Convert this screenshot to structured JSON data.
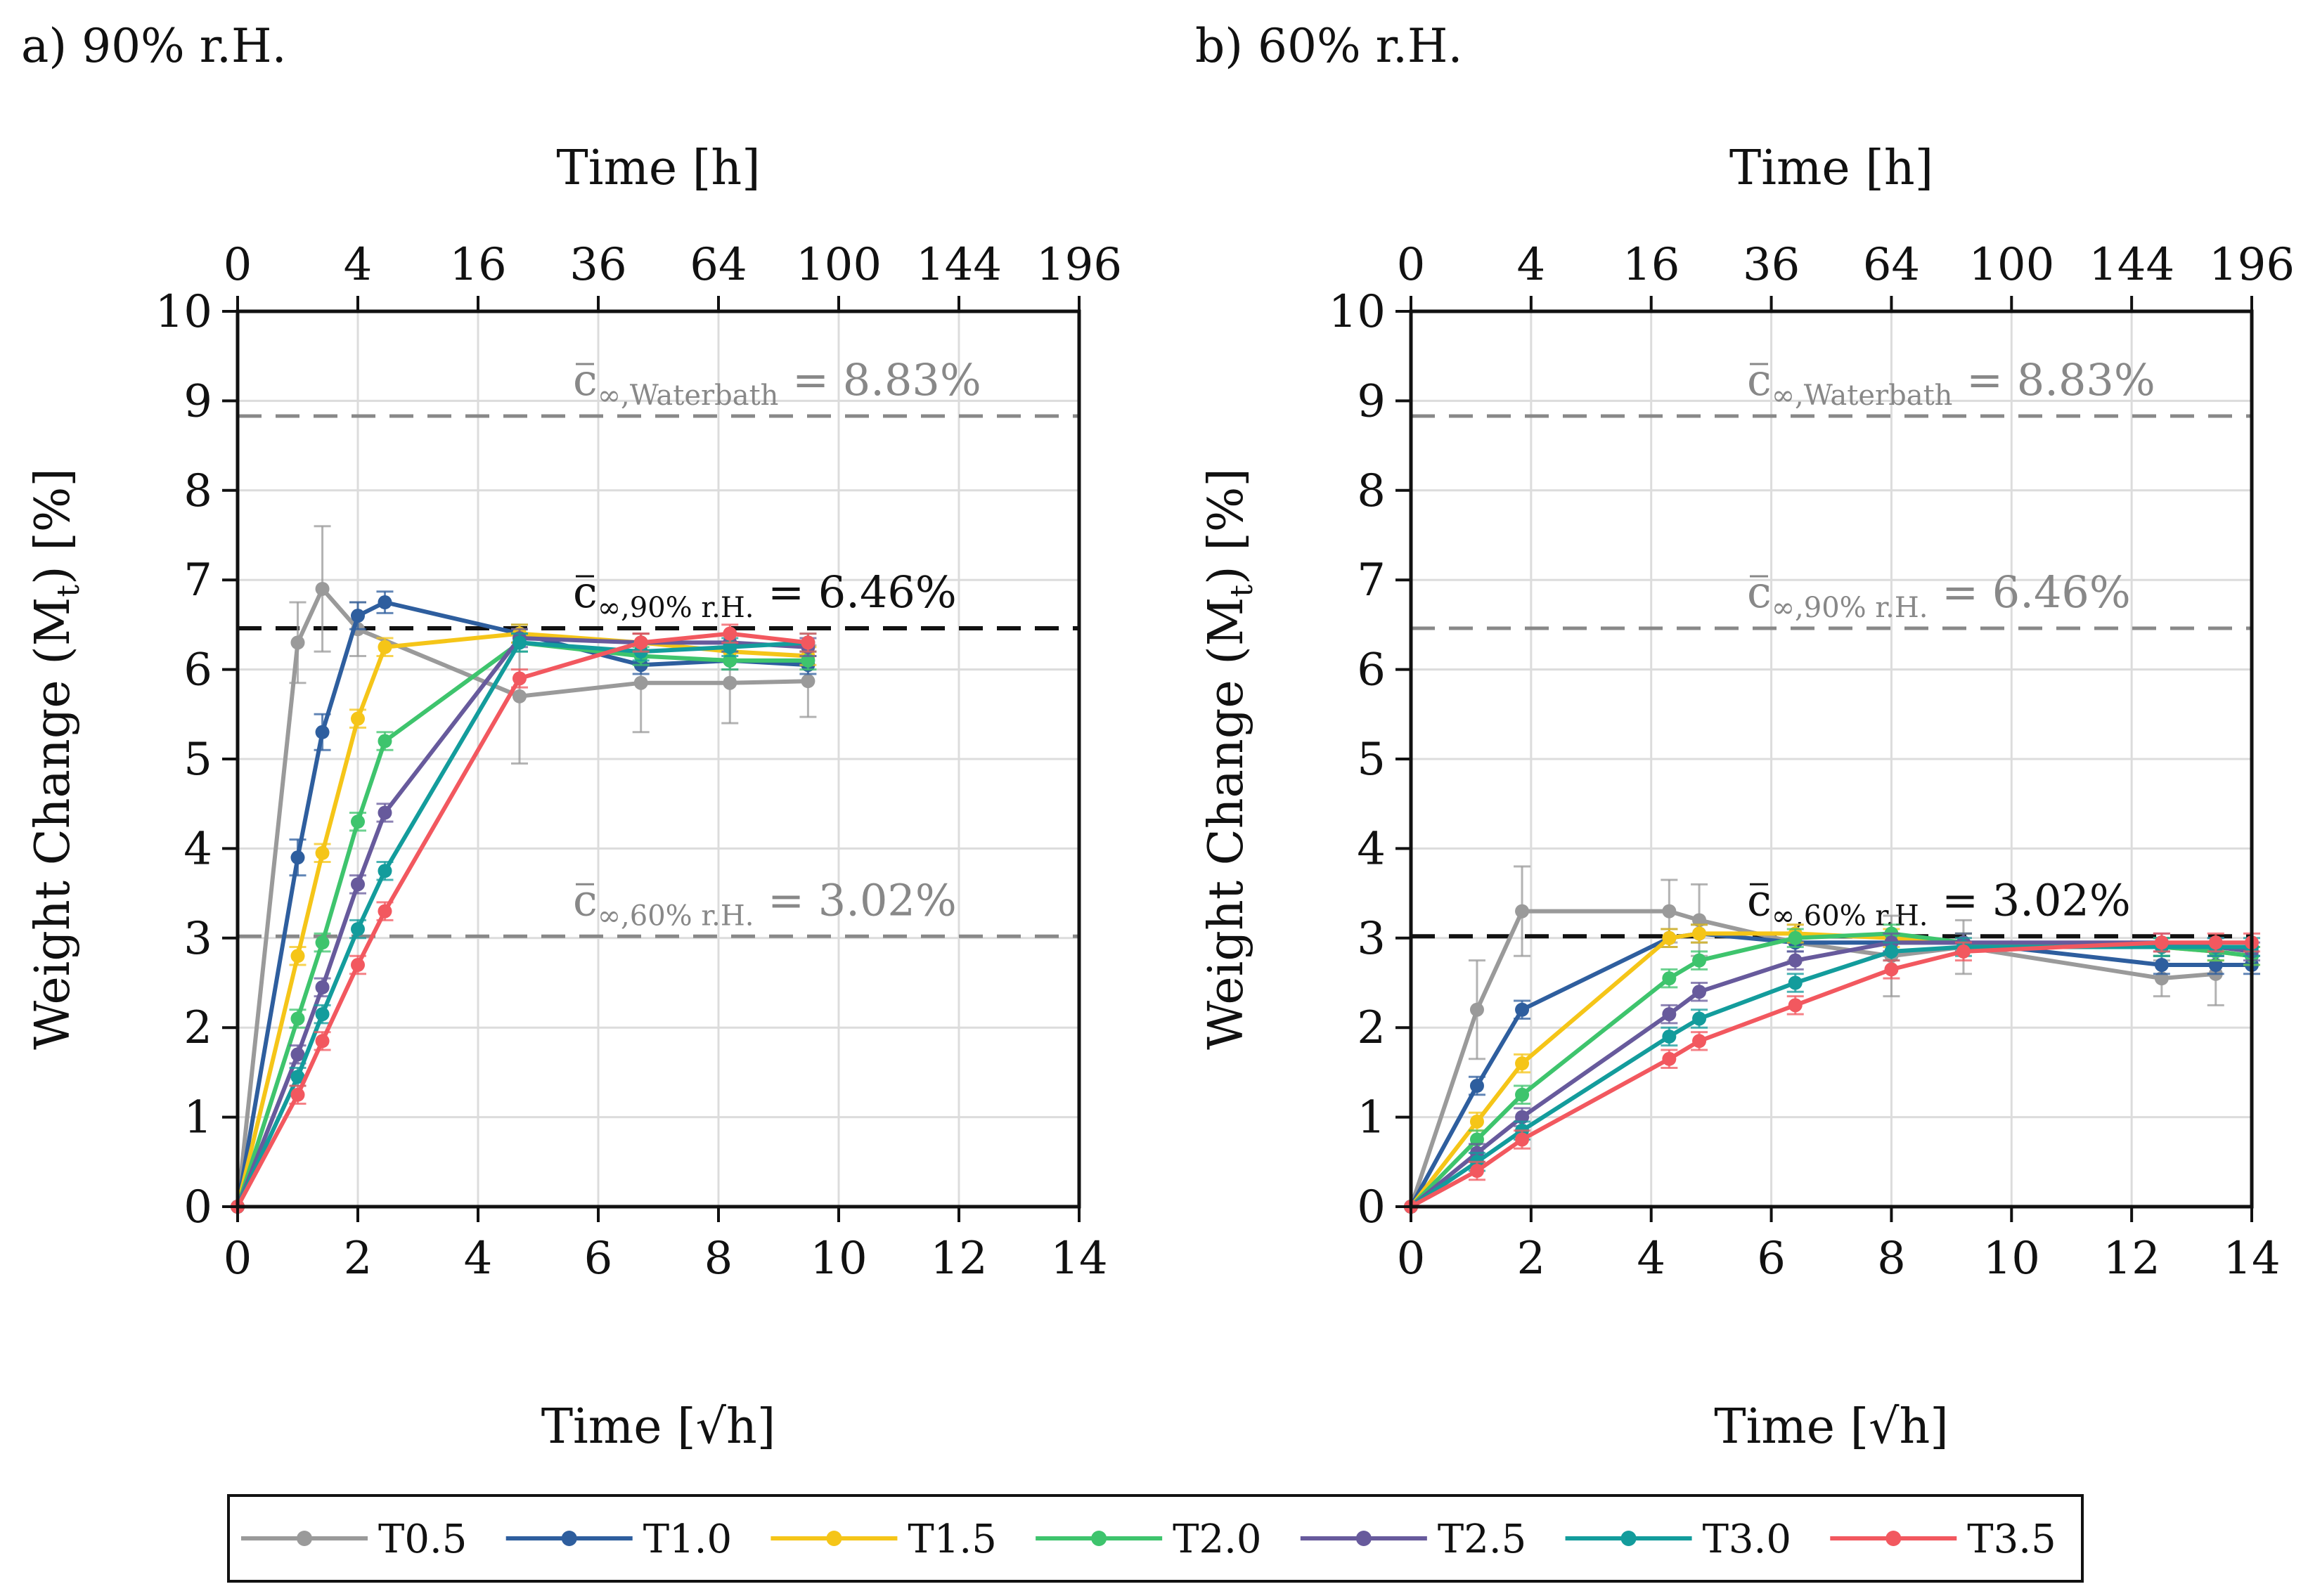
{
  "chart_data": [
    {
      "type": "line",
      "panel_label": "a) 90% r.H.",
      "title": "90% r.H.",
      "xlabel": "Time [√h]",
      "x2label": "Time [h]",
      "ylabel": "Weight Change (Mt) [%]",
      "ylabel_main": "Weight Change (M",
      "ylabel_sub": "t",
      "ylabel_end": ") [%]",
      "xlim": [
        0,
        14
      ],
      "ylim": [
        0,
        10
      ],
      "x_ticks": [
        "0",
        "2",
        "4",
        "6",
        "8",
        "10",
        "12",
        "14"
      ],
      "y_ticks": [
        "0",
        "1",
        "2",
        "3",
        "4",
        "5",
        "6",
        "7",
        "8",
        "9",
        "10"
      ],
      "top_ticks": [
        "0",
        "4",
        "16",
        "36",
        "64",
        "100",
        "144",
        "196"
      ],
      "grid": true,
      "reference_lines": [
        {
          "value": 8.83,
          "main": "c",
          "sub": "∞,Waterbath",
          "value_text": " = 8.83%",
          "emphasis": false
        },
        {
          "value": 6.46,
          "main": "c",
          "sub": "∞,90% r.H.",
          "value_text": " = 6.46%",
          "emphasis": true
        },
        {
          "value": 3.02,
          "main": "c",
          "sub": "∞,60% r.H.",
          "value_text": " = 3.02%",
          "emphasis": false
        }
      ],
      "series": [
        {
          "name": "T0.5",
          "color": "#9a9a9a",
          "x": [
            0,
            1,
            1.41,
            2,
            4.69,
            6.71,
            8.19,
            9.49
          ],
          "y": [
            0,
            6.3,
            6.9,
            6.45,
            5.7,
            5.85,
            5.85,
            5.87
          ],
          "err": [
            0,
            0.45,
            0.7,
            0.3,
            0.75,
            0.55,
            0.45,
            0.4
          ]
        },
        {
          "name": "T1.0",
          "color": "#2e5e9e",
          "x": [
            0,
            1,
            1.41,
            2,
            2.45,
            4.69,
            6.71,
            8.19,
            9.49
          ],
          "y": [
            0,
            3.9,
            5.3,
            6.6,
            6.75,
            6.4,
            6.05,
            6.1,
            6.05
          ],
          "err": [
            0,
            0.2,
            0.2,
            0.15,
            0.12,
            0.1,
            0.1,
            0.1,
            0.1
          ]
        },
        {
          "name": "T1.5",
          "color": "#f5c518",
          "x": [
            0,
            1,
            1.41,
            2,
            2.45,
            4.69,
            6.71,
            8.19,
            9.49
          ],
          "y": [
            0,
            2.8,
            3.95,
            5.45,
            6.25,
            6.4,
            6.3,
            6.2,
            6.15
          ],
          "err": [
            0,
            0.1,
            0.1,
            0.1,
            0.1,
            0.1,
            0.1,
            0.1,
            0.1
          ]
        },
        {
          "name": "T2.0",
          "color": "#3ec46d",
          "x": [
            0,
            1,
            1.41,
            2,
            2.45,
            4.69,
            6.71,
            8.19,
            9.49
          ],
          "y": [
            0,
            2.1,
            2.95,
            4.3,
            5.2,
            6.3,
            6.15,
            6.1,
            6.1
          ],
          "err": [
            0,
            0.1,
            0.1,
            0.1,
            0.1,
            0.1,
            0.1,
            0.1,
            0.1
          ]
        },
        {
          "name": "T2.5",
          "color": "#675a9c",
          "x": [
            0,
            1,
            1.41,
            2,
            2.45,
            4.69,
            6.71,
            8.19,
            9.49
          ],
          "y": [
            0,
            1.7,
            2.45,
            3.6,
            4.4,
            6.35,
            6.3,
            6.3,
            6.25
          ],
          "err": [
            0,
            0.1,
            0.1,
            0.1,
            0.1,
            0.1,
            0.1,
            0.1,
            0.1
          ]
        },
        {
          "name": "T3.0",
          "color": "#139c9c",
          "x": [
            0,
            1,
            1.41,
            2,
            2.45,
            4.69,
            6.71,
            8.19,
            9.49
          ],
          "y": [
            0,
            1.45,
            2.15,
            3.1,
            3.75,
            6.3,
            6.2,
            6.25,
            6.3
          ],
          "err": [
            0,
            0.1,
            0.1,
            0.1,
            0.1,
            0.1,
            0.1,
            0.1,
            0.1
          ]
        },
        {
          "name": "T3.5",
          "color": "#f2585f",
          "x": [
            0,
            1,
            1.41,
            2,
            2.45,
            4.69,
            6.71,
            8.19,
            9.49
          ],
          "y": [
            0,
            1.25,
            1.85,
            2.7,
            3.3,
            5.9,
            6.3,
            6.4,
            6.3
          ],
          "err": [
            0,
            0.1,
            0.1,
            0.1,
            0.1,
            0.1,
            0.1,
            0.1,
            0.1
          ]
        }
      ]
    },
    {
      "type": "line",
      "panel_label": "b) 60% r.H.",
      "title": "60% r.H.",
      "xlabel": "Time [√h]",
      "x2label": "Time [h]",
      "ylabel": "Weight Change (Mt) [%]",
      "ylabel_main": "Weight Change (M",
      "ylabel_sub": "t",
      "ylabel_end": ") [%]",
      "xlim": [
        0,
        14
      ],
      "ylim": [
        0,
        10
      ],
      "x_ticks": [
        "0",
        "2",
        "4",
        "6",
        "8",
        "10",
        "12",
        "14"
      ],
      "y_ticks": [
        "0",
        "1",
        "2",
        "3",
        "4",
        "5",
        "6",
        "7",
        "8",
        "9",
        "10"
      ],
      "top_ticks": [
        "0",
        "4",
        "16",
        "36",
        "64",
        "100",
        "144",
        "196"
      ],
      "grid": true,
      "reference_lines": [
        {
          "value": 8.83,
          "main": "c",
          "sub": "∞,Waterbath",
          "value_text": " = 8.83%",
          "emphasis": false
        },
        {
          "value": 6.46,
          "main": "c",
          "sub": "∞,90% r.H.",
          "value_text": " = 6.46%",
          "emphasis": false
        },
        {
          "value": 3.02,
          "main": "c",
          "sub": "∞,60% r.H.",
          "value_text": " = 3.02%",
          "emphasis": true
        }
      ],
      "series": [
        {
          "name": "T0.5",
          "color": "#9a9a9a",
          "x": [
            0,
            1.1,
            1.85,
            4.3,
            4.8,
            6.4,
            8.0,
            9.2,
            12.5,
            13.4
          ],
          "y": [
            0,
            2.2,
            3.3,
            3.3,
            3.2,
            2.95,
            2.8,
            2.9,
            2.55,
            2.6
          ],
          "err": [
            0,
            0.55,
            0.5,
            0.35,
            0.4,
            0.2,
            0.45,
            0.3,
            0.2,
            0.35
          ]
        },
        {
          "name": "T1.0",
          "color": "#2e5e9e",
          "x": [
            0,
            1.1,
            1.85,
            4.3,
            4.8,
            6.4,
            8.0,
            9.2,
            12.5,
            13.4,
            14.0
          ],
          "y": [
            0,
            1.35,
            2.2,
            3.0,
            3.05,
            2.95,
            2.95,
            2.95,
            2.7,
            2.7,
            2.7
          ],
          "err": [
            0,
            0.1,
            0.1,
            0.1,
            0.1,
            0.1,
            0.1,
            0.1,
            0.1,
            0.1,
            0.1
          ]
        },
        {
          "name": "T1.5",
          "color": "#f5c518",
          "x": [
            0,
            1.1,
            1.85,
            4.3,
            4.8,
            6.4,
            8.0,
            9.2,
            12.5,
            13.4,
            14.0
          ],
          "y": [
            0,
            0.95,
            1.6,
            3.0,
            3.05,
            3.05,
            3.0,
            2.95,
            2.9,
            2.85,
            2.8
          ],
          "err": [
            0,
            0.1,
            0.1,
            0.1,
            0.1,
            0.1,
            0.1,
            0.1,
            0.1,
            0.1,
            0.1
          ]
        },
        {
          "name": "T2.0",
          "color": "#3ec46d",
          "x": [
            0,
            1.1,
            1.85,
            4.3,
            4.8,
            6.4,
            8.0,
            9.2,
            12.5,
            13.4,
            14.0
          ],
          "y": [
            0,
            0.75,
            1.25,
            2.55,
            2.75,
            3.0,
            3.05,
            2.95,
            2.9,
            2.85,
            2.8
          ],
          "err": [
            0,
            0.1,
            0.1,
            0.1,
            0.1,
            0.1,
            0.1,
            0.1,
            0.1,
            0.1,
            0.1
          ]
        },
        {
          "name": "T2.5",
          "color": "#675a9c",
          "x": [
            0,
            1.1,
            1.85,
            4.3,
            4.8,
            6.4,
            8.0,
            9.2,
            12.5,
            13.4,
            14.0
          ],
          "y": [
            0,
            0.6,
            1.0,
            2.15,
            2.4,
            2.75,
            2.95,
            2.95,
            2.95,
            2.9,
            2.85
          ],
          "err": [
            0,
            0.1,
            0.1,
            0.1,
            0.1,
            0.1,
            0.1,
            0.1,
            0.1,
            0.1,
            0.1
          ]
        },
        {
          "name": "T3.0",
          "color": "#139c9c",
          "x": [
            0,
            1.1,
            1.85,
            4.3,
            4.8,
            6.4,
            8.0,
            9.2,
            12.5,
            13.4,
            14.0
          ],
          "y": [
            0,
            0.5,
            0.85,
            1.9,
            2.1,
            2.5,
            2.85,
            2.9,
            2.9,
            2.9,
            2.9
          ],
          "err": [
            0,
            0.1,
            0.1,
            0.1,
            0.1,
            0.1,
            0.1,
            0.1,
            0.1,
            0.1,
            0.1
          ]
        },
        {
          "name": "T3.5",
          "color": "#f2585f",
          "x": [
            0,
            1.1,
            1.85,
            4.3,
            4.8,
            6.4,
            8.0,
            9.2,
            12.5,
            13.4,
            14.0
          ],
          "y": [
            0,
            0.4,
            0.75,
            1.65,
            1.85,
            2.25,
            2.65,
            2.85,
            2.95,
            2.95,
            2.95
          ],
          "err": [
            0,
            0.1,
            0.1,
            0.1,
            0.1,
            0.1,
            0.1,
            0.1,
            0.1,
            0.1,
            0.1
          ]
        }
      ]
    }
  ],
  "legend": {
    "placement": "bottom-center",
    "entries": [
      {
        "name": "T0.5",
        "color": "#9a9a9a"
      },
      {
        "name": "T1.0",
        "color": "#2e5e9e"
      },
      {
        "name": "T1.5",
        "color": "#f5c518"
      },
      {
        "name": "T2.0",
        "color": "#3ec46d"
      },
      {
        "name": "T2.5",
        "color": "#675a9c"
      },
      {
        "name": "T3.0",
        "color": "#139c9c"
      },
      {
        "name": "T3.5",
        "color": "#f2585f"
      }
    ]
  }
}
